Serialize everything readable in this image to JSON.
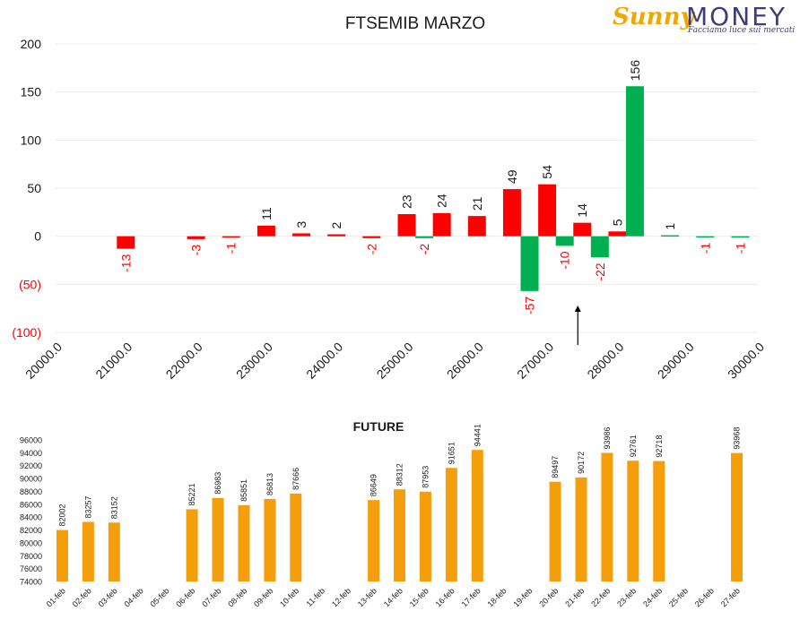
{
  "logo": {
    "sun_text": "Sunny",
    "money_text": "MONEY",
    "tagline": "Facciamo luce sui mercati"
  },
  "colors": {
    "call": "#ff0000",
    "put": "#00b050",
    "future": "#f59e0b",
    "negative_label": "#ff0000",
    "text": "#1a1a1a"
  },
  "chart_data": [
    {
      "type": "bar",
      "title": "FTSEMIB MARZO",
      "series": [
        {
          "color": "red",
          "points": [
            {
              "x": 21000,
              "y": -13
            },
            {
              "x": 22000,
              "y": -3
            },
            {
              "x": 22500,
              "y": -1
            },
            {
              "x": 23000,
              "y": 11
            },
            {
              "x": 23500,
              "y": 3
            },
            {
              "x": 24000,
              "y": 2
            },
            {
              "x": 24500,
              "y": -2
            },
            {
              "x": 25000,
              "y": 23
            },
            {
              "x": 25500,
              "y": 24
            },
            {
              "x": 26000,
              "y": 21
            },
            {
              "x": 26500,
              "y": 49
            },
            {
              "x": 27000,
              "y": 54
            },
            {
              "x": 27500,
              "y": 14
            },
            {
              "x": 28000,
              "y": 5
            }
          ]
        },
        {
          "color": "green",
          "points": [
            {
              "x": 25250,
              "y": -2
            },
            {
              "x": 26750,
              "y": -57
            },
            {
              "x": 27250,
              "y": -10
            },
            {
              "x": 27750,
              "y": -22
            },
            {
              "x": 28250,
              "y": 156
            },
            {
              "x": 28750,
              "y": 1
            },
            {
              "x": 29250,
              "y": -1
            },
            {
              "x": 29750,
              "y": -1
            }
          ]
        }
      ],
      "ylim": [
        -100,
        200
      ],
      "y_ticks": [
        200,
        150,
        100,
        50,
        0,
        -50,
        -100
      ],
      "y_tick_labels": [
        "200",
        "150",
        "100",
        "50",
        "0",
        "(50)",
        "(100)"
      ],
      "xlim": [
        20000,
        30000
      ],
      "x_ticks": [
        20000,
        21000,
        22000,
        23000,
        24000,
        25000,
        26000,
        27000,
        28000,
        29000,
        30000
      ],
      "x_tick_labels": [
        "20000.0",
        "21000.0",
        "22000.0",
        "23000.0",
        "24000.0",
        "25000.0",
        "26000.0",
        "27000.0",
        "28000.0",
        "29000.0",
        "30000.0"
      ],
      "annotations": [
        {
          "type": "arrow",
          "x": 27500,
          "from_y": -113,
          "to_y": -72
        }
      ],
      "grid": true,
      "legend": "none"
    },
    {
      "type": "bar",
      "title": "FUTURE",
      "categories": [
        "01-feb",
        "02-feb",
        "03-feb",
        "04-feb",
        "05-feb",
        "06-feb",
        "07-feb",
        "08-feb",
        "09-feb",
        "10-feb",
        "11-feb",
        "12-feb",
        "13-feb",
        "14-feb",
        "15-feb",
        "16-feb",
        "17-feb",
        "18-feb",
        "19-feb",
        "20-feb",
        "21-feb",
        "22-feb",
        "23-feb",
        "24-feb",
        "25-feb",
        "26-feb",
        "27-feb"
      ],
      "values": [
        82002,
        83257,
        83152,
        null,
        null,
        85221,
        86983,
        85851,
        86813,
        87666,
        null,
        null,
        86649,
        88312,
        87953,
        91651,
        94441,
        null,
        null,
        89497,
        90172,
        93986,
        92761,
        92718,
        null,
        null,
        93968
      ],
      "ylim": [
        74000,
        96000
      ],
      "y_ticks": [
        96000,
        94000,
        92000,
        90000,
        88000,
        86000,
        84000,
        82000,
        80000,
        78000,
        76000,
        74000
      ],
      "grid": false,
      "legend": "none"
    }
  ]
}
